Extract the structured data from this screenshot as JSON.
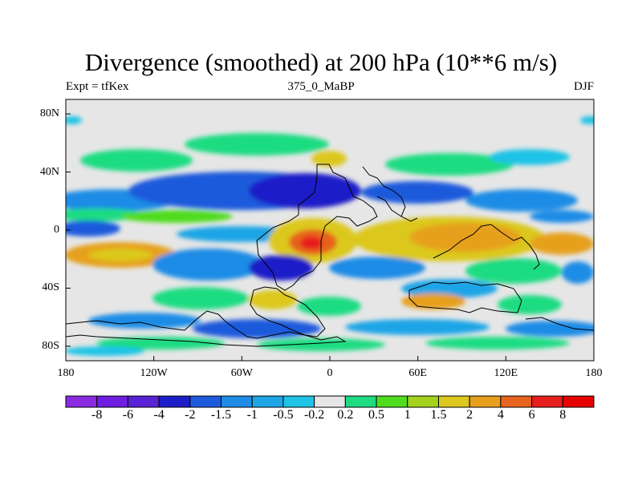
{
  "title": "Divergence (smoothed) at 200 hPa (10**6 m/s)",
  "left_string": "Expt = tfKex",
  "center_string": "375_0_MaBP",
  "right_string": "DJF",
  "lat_labels": [
    "80N",
    "40N",
    "0",
    "40S",
    "80S"
  ],
  "lat_values": [
    80,
    40,
    0,
    -40,
    -80
  ],
  "lon_labels": [
    "180",
    "120W",
    "60W",
    "0",
    "60E",
    "120E",
    "180"
  ],
  "lon_values": [
    -180,
    -120,
    -60,
    0,
    60,
    120,
    180
  ],
  "lat_range": [
    -90,
    90
  ],
  "lon_range": [
    -180,
    180
  ],
  "colorbar": {
    "labels": [
      "-8",
      "-6",
      "-4",
      "-2",
      "-1.5",
      "-1",
      "-0.5",
      "-0.2",
      "0.2",
      "0.5",
      "1",
      "1.5",
      "2",
      "4",
      "6",
      "8"
    ],
    "colors": [
      "#8a2be2",
      "#6f1de0",
      "#5a21d6",
      "#1e1ec8",
      "#1e5adc",
      "#1e8ce6",
      "#1ea5e6",
      "#1ec3e6",
      "#e6e6e6",
      "#1edc82",
      "#50dc1e",
      "#a5d21e",
      "#dcc81e",
      "#e6a01e",
      "#e6641e",
      "#e61e1e",
      "#e60000"
    ]
  }
}
